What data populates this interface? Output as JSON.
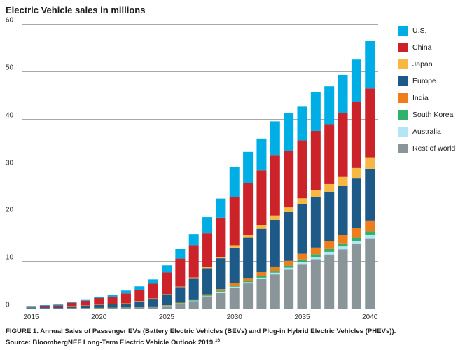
{
  "chart_data": {
    "type": "bar",
    "stacked": true,
    "title": "Electric Vehicle sales in millions",
    "xlabel": "",
    "ylabel": "",
    "ylim": [
      0,
      60
    ],
    "y_ticks": [
      "0",
      "10",
      "20",
      "30",
      "40",
      "50",
      "60"
    ],
    "x_tick_labels": [
      "2015",
      "2020",
      "2025",
      "2030",
      "2035",
      "2040"
    ],
    "grid": true,
    "legend_position": "right",
    "categories": [
      "2015",
      "2016",
      "2017",
      "2018",
      "2019",
      "2020",
      "2021",
      "2022",
      "2023",
      "2024",
      "2025",
      "2026",
      "2027",
      "2028",
      "2029",
      "2030",
      "2031",
      "2032",
      "2033",
      "2034",
      "2035",
      "2036",
      "2037",
      "2038",
      "2039",
      "2040"
    ],
    "series": [
      {
        "name": "Rest of world",
        "color": "#8a9599",
        "values": [
          0.05,
          0.06,
          0.08,
          0.1,
          0.12,
          0.14,
          0.17,
          0.2,
          0.25,
          0.35,
          0.55,
          1.0,
          1.6,
          2.5,
          3.4,
          4.4,
          5.3,
          6.2,
          7.2,
          8.2,
          9.4,
          10.4,
          11.4,
          12.5,
          13.6,
          14.8
        ]
      },
      {
        "name": "Australia",
        "color": "#b3e5f7",
        "values": [
          0,
          0,
          0,
          0,
          0,
          0,
          0,
          0,
          0,
          0.02,
          0.03,
          0.05,
          0.08,
          0.1,
          0.15,
          0.2,
          0.25,
          0.3,
          0.35,
          0.4,
          0.45,
          0.5,
          0.55,
          0.6,
          0.65,
          0.7
        ]
      },
      {
        "name": "South Korea",
        "color": "#2fb36a",
        "values": [
          0,
          0,
          0,
          0,
          0,
          0.01,
          0.01,
          0.02,
          0.03,
          0.04,
          0.06,
          0.08,
          0.1,
          0.15,
          0.2,
          0.25,
          0.3,
          0.35,
          0.4,
          0.45,
          0.5,
          0.55,
          0.6,
          0.65,
          0.7,
          0.8
        ]
      },
      {
        "name": "India",
        "color": "#ef7d1a",
        "values": [
          0,
          0,
          0,
          0,
          0,
          0.01,
          0.02,
          0.03,
          0.04,
          0.05,
          0.08,
          0.1,
          0.15,
          0.25,
          0.35,
          0.5,
          0.6,
          0.8,
          0.9,
          1.0,
          1.2,
          1.4,
          1.6,
          1.8,
          2.0,
          2.3
        ]
      },
      {
        "name": "Europe",
        "color": "#1e5a87",
        "values": [
          0.2,
          0.25,
          0.3,
          0.4,
          0.5,
          0.6,
          0.7,
          0.8,
          1.2,
          1.6,
          2.3,
          3.3,
          4.5,
          5.5,
          6.5,
          7.5,
          8.5,
          9.2,
          9.9,
          10.3,
          10.5,
          10.6,
          10.5,
          10.3,
          10.6,
          10.9
        ]
      },
      {
        "name": "Japan",
        "color": "#f7b843",
        "values": [
          0.03,
          0.03,
          0.03,
          0.03,
          0.04,
          0.05,
          0.05,
          0.05,
          0.06,
          0.08,
          0.08,
          0.1,
          0.12,
          0.2,
          0.3,
          0.5,
          0.6,
          0.8,
          0.9,
          1.0,
          1.2,
          1.5,
          1.6,
          1.9,
          2.1,
          2.4
        ]
      },
      {
        "name": "China",
        "color": "#cc2229",
        "values": [
          0.2,
          0.3,
          0.3,
          0.7,
          1.0,
          1.4,
          1.5,
          2.1,
          2.4,
          3.1,
          4.5,
          5.9,
          6.8,
          7.2,
          8.3,
          10.2,
          10.9,
          11.5,
          12.6,
          11.9,
          12.2,
          12.5,
          12.6,
          13.5,
          13.9,
          14.5
        ]
      },
      {
        "name": "U.S.",
        "color": "#00aee6",
        "values": [
          0.08,
          0.1,
          0.15,
          0.2,
          0.3,
          0.3,
          0.4,
          0.6,
          0.7,
          0.9,
          1.5,
          2.0,
          2.4,
          3.4,
          4.0,
          6.3,
          6.6,
          6.7,
          7.2,
          7.9,
          7.1,
          8.1,
          8.0,
          8.0,
          8.9,
          10.0
        ]
      }
    ],
    "legend_order": [
      "U.S.",
      "China",
      "Japan",
      "Europe",
      "India",
      "South Korea",
      "Australia",
      "Rest of world"
    ]
  },
  "caption": {
    "line1": "FIGURE 1. Annual Sales of Passenger EVs (Battery Electric Vehicles (BEVs) and Plug-in Hybrid Electric Vehicles (PHEVs)).",
    "line2": "Source: BloombergNEF Long-Term Electric Vehicle Outlook 2019.",
    "footnote_mark": "16"
  }
}
